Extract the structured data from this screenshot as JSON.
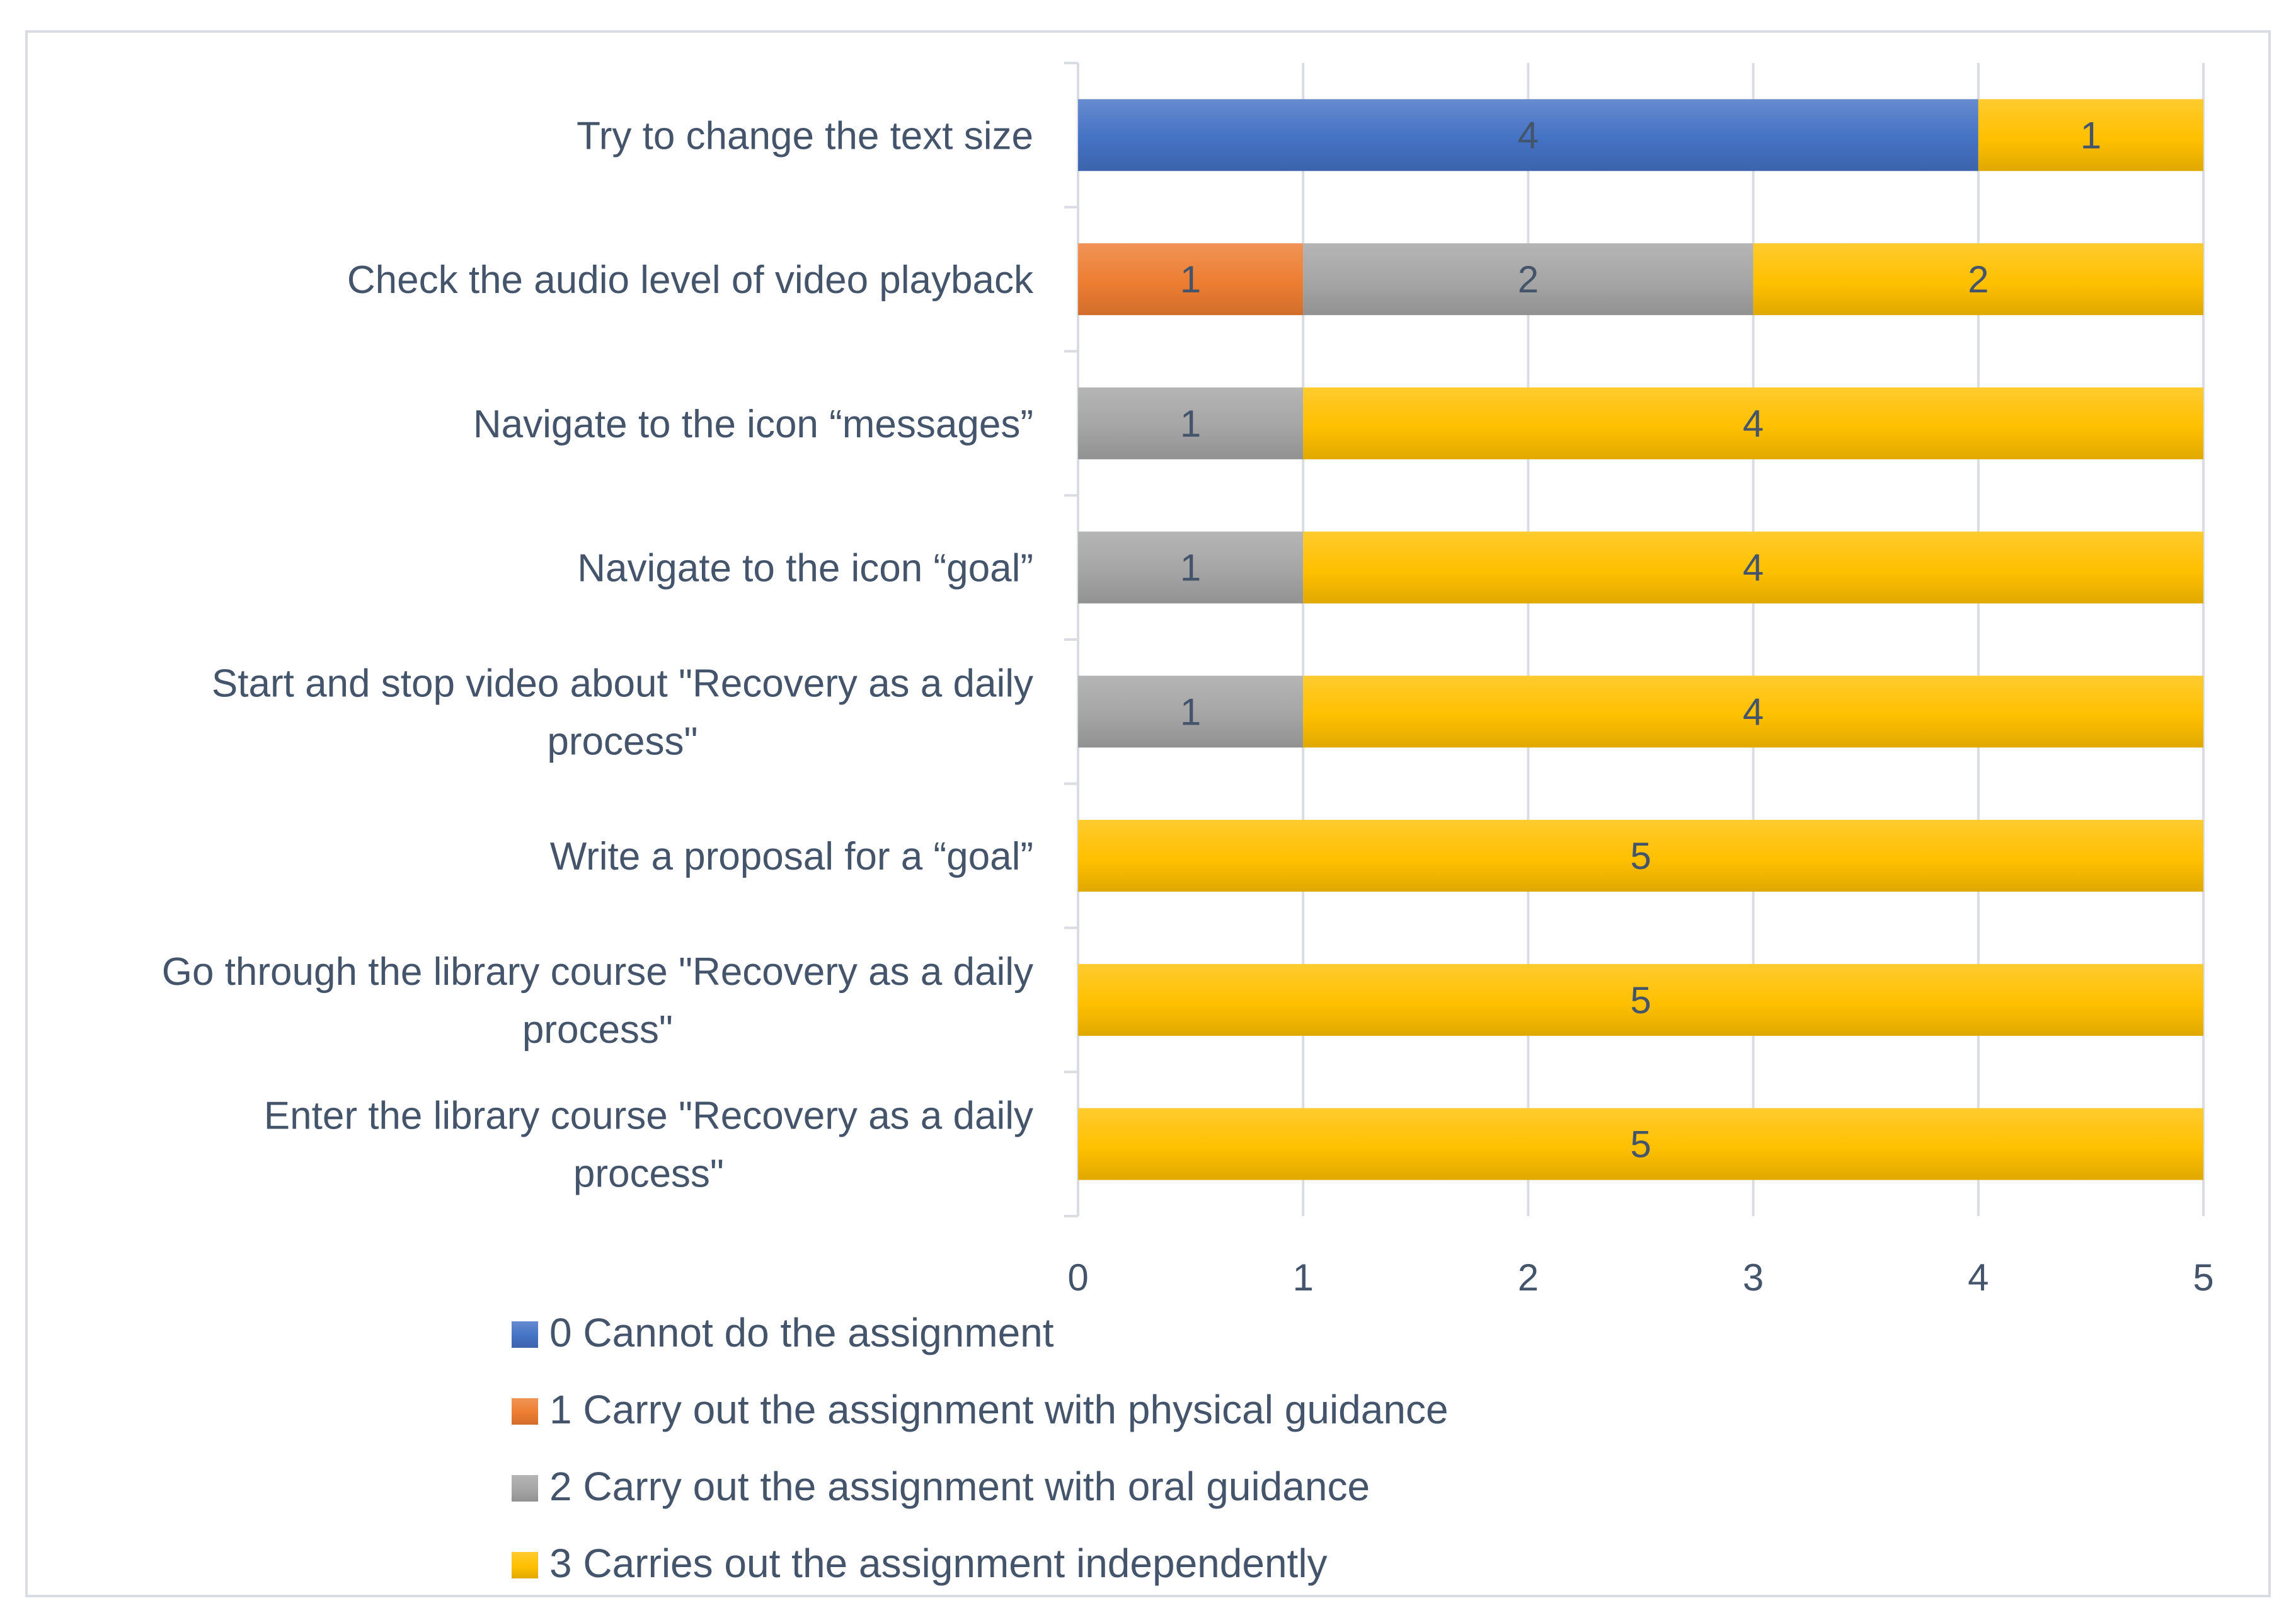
{
  "chart_data": {
    "type": "bar",
    "orientation": "horizontal",
    "stacked": true,
    "title": "",
    "xlabel": "",
    "ylabel": "",
    "xlim": [
      0,
      5
    ],
    "grid": true,
    "legend_position": "bottom",
    "x_ticks": [
      "0",
      "1",
      "2",
      "3",
      "4",
      "5"
    ],
    "categories": [
      [
        "Try to change the text size"
      ],
      [
        "Check the audio level of video playback"
      ],
      [
        "Navigate to the icon “messages”"
      ],
      [
        "Navigate to the icon “goal”"
      ],
      [
        "Start and stop video about \"Recovery as a daily",
        "process\""
      ],
      [
        "Write a proposal for a “goal”"
      ],
      [
        "Go through the library course \"Recovery as a daily",
        "process\""
      ],
      [
        "Enter the library course \"Recovery as a daily",
        "process\""
      ]
    ],
    "series": [
      {
        "name": "0 Cannot do the assignment",
        "color": "#4472c4",
        "values": [
          4,
          0,
          0,
          0,
          0,
          0,
          0,
          0
        ]
      },
      {
        "name": "1 Carry out the assignment with physical guidance",
        "color": "#ed7d31",
        "values": [
          0,
          1,
          0,
          0,
          0,
          0,
          0,
          0
        ]
      },
      {
        "name": "2 Carry out the assignment with oral guidance",
        "color": "#a5a5a5",
        "values": [
          0,
          2,
          1,
          1,
          1,
          0,
          0,
          0
        ]
      },
      {
        "name": "3 Carries out the assignment independently",
        "color": "#ffc000",
        "values": [
          1,
          2,
          4,
          4,
          4,
          5,
          5,
          5
        ]
      }
    ]
  }
}
